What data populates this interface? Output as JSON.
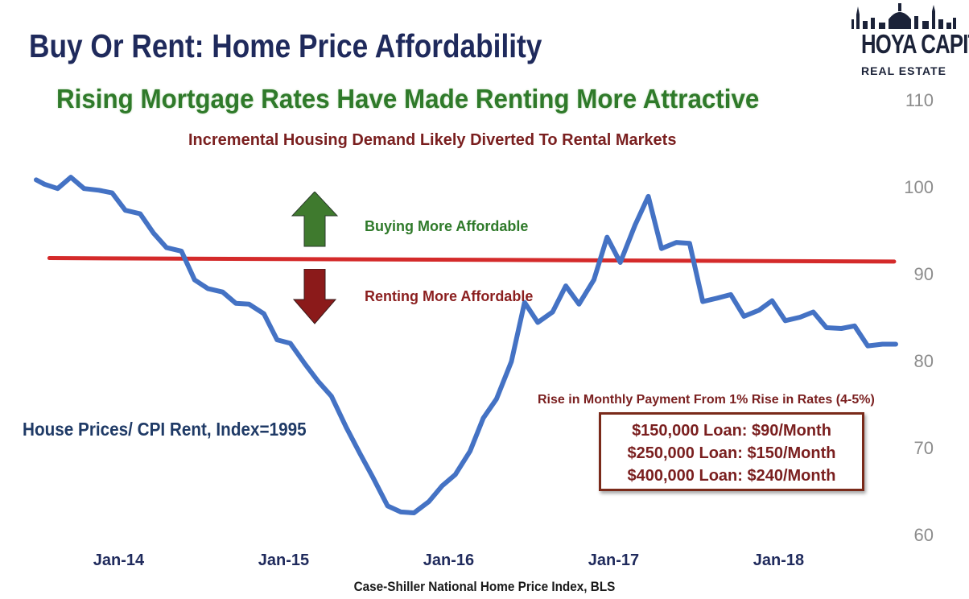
{
  "header": {
    "title": "Buy Or Rent: Home Price Affordability",
    "subtitle": "Rising Mortgage Rates Have Made Renting More Attractive",
    "note": "Incremental Housing Demand Likely Diverted To Rental Markets"
  },
  "logo": {
    "name": "HOYA CAPITAL",
    "sub": "REAL ESTATE"
  },
  "annotations": {
    "series_label": "House Prices/ CPI Rent, Index=1995",
    "buy_label": "Buying More Affordable",
    "rent_label": "Renting More Affordable",
    "buy_color": "#3f7a2e",
    "rent_color": "#8b1a1a"
  },
  "info_box": {
    "title": "Rise in Monthly Payment From 1% Rise in Rates (4-5%)",
    "lines": [
      "$150,000 Loan: $90/Month",
      "$250,000 Loan: $150/Month",
      "$400,000 Loan: $240/Month"
    ]
  },
  "source": "Case-Shiller National Home Price Index, BLS",
  "chart_data": {
    "type": "line",
    "title": "Buy Or Rent: Home Price Affordability",
    "xlabel": "",
    "ylabel": "",
    "ylim": [
      60,
      110
    ],
    "yticks": [
      "60",
      "70",
      "80",
      "90",
      "100",
      "110"
    ],
    "xticks": [
      {
        "label": "Jan-14",
        "x": 2014.0
      },
      {
        "label": "Jan-15",
        "x": 2015.0
      },
      {
        "label": "Jan-16",
        "x": 2016.0
      },
      {
        "label": "Jan-17",
        "x": 2017.0
      },
      {
        "label": "Jan-18",
        "x": 2018.0
      }
    ],
    "grid": false,
    "line_color": "#4472c4",
    "threshold_color": "#d42a2a",
    "threshold": {
      "x": [
        2013.58,
        2018.7
      ],
      "y": [
        91.8,
        91.4
      ]
    },
    "series": [
      {
        "x": [
          2013.5,
          2013.55,
          2013.63,
          2013.71,
          2013.79,
          2013.88,
          2013.96,
          2014.04,
          2014.13,
          2014.21,
          2014.29,
          2014.38,
          2014.46,
          2014.54,
          2014.63,
          2014.71,
          2014.79,
          2014.88,
          2014.96,
          2015.04,
          2015.13,
          2015.21,
          2015.29,
          2015.38,
          2015.46,
          2015.54,
          2015.63,
          2015.71,
          2015.79,
          2015.88,
          2015.96,
          2016.04,
          2016.13,
          2016.21,
          2016.29,
          2016.38,
          2016.46,
          2016.54,
          2016.63,
          2016.71,
          2016.79,
          2016.88,
          2016.96,
          2017.04,
          2017.13,
          2017.21,
          2017.29,
          2017.38,
          2017.46,
          2017.54,
          2017.63,
          2017.71,
          2017.79,
          2017.88,
          2017.96,
          2018.04,
          2018.13,
          2018.21,
          2018.29,
          2018.38,
          2018.46,
          2018.54,
          2018.63,
          2018.71
        ],
        "y": [
          100.8,
          100.3,
          99.8,
          101.1,
          99.8,
          99.6,
          99.3,
          97.3,
          96.9,
          94.7,
          93.0,
          92.6,
          89.3,
          88.3,
          87.9,
          86.6,
          86.5,
          85.4,
          82.4,
          82.0,
          79.6,
          77.6,
          75.9,
          72.3,
          69.4,
          66.6,
          63.3,
          62.6,
          62.5,
          63.8,
          65.6,
          66.9,
          69.6,
          73.4,
          75.6,
          79.9,
          86.7,
          84.4,
          85.6,
          88.6,
          86.5,
          89.3,
          94.2,
          91.3,
          95.6,
          98.9,
          92.9,
          93.6,
          93.5,
          86.8,
          87.2,
          87.6,
          85.1,
          85.8,
          86.9,
          84.6,
          85.0,
          85.6,
          83.8,
          83.7,
          84.0,
          81.7,
          81.9,
          81.9
        ]
      }
    ]
  }
}
